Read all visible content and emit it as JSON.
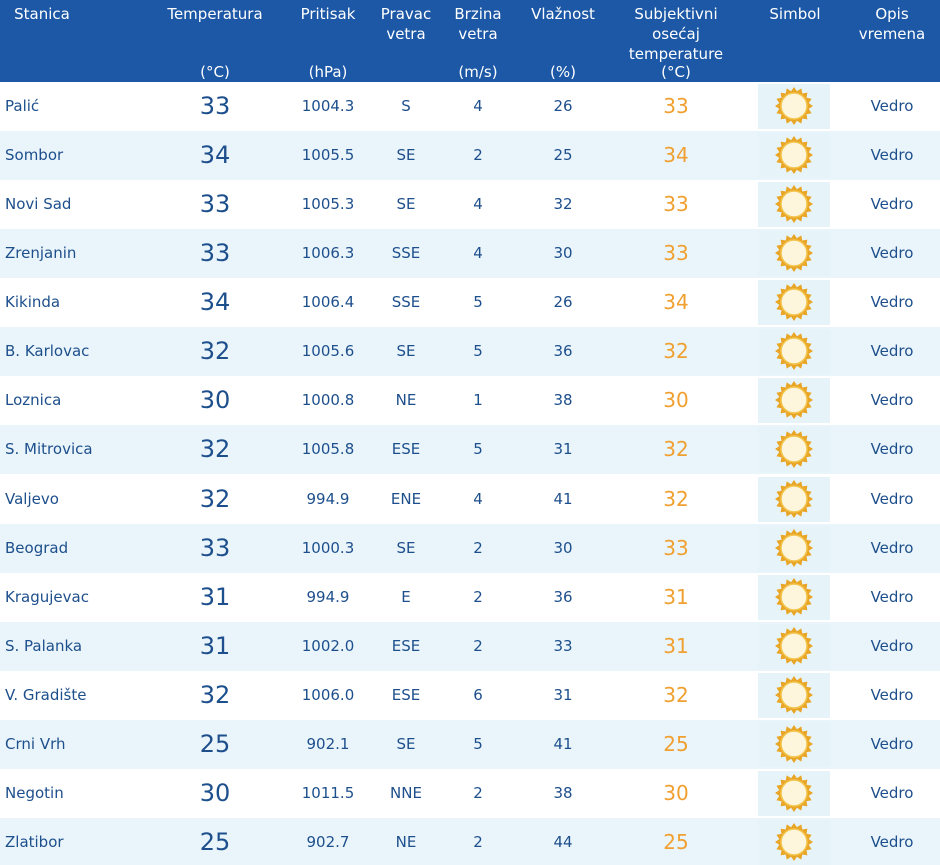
{
  "header": {
    "columns": [
      {
        "name": "Stanica"
      },
      {
        "name": "Temperatura",
        "unit": "(°C)"
      },
      {
        "name": "Pritisak",
        "unit": "(hPa)"
      },
      {
        "name": "Pravac vetra"
      },
      {
        "name": "Brzina vetra",
        "unit": "(m/s)"
      },
      {
        "name": "Vlažnost",
        "unit": "(%)"
      },
      {
        "name": "Subjektivni osećaj temperature",
        "unit": "(°C)"
      },
      {
        "name": "Simbol"
      },
      {
        "name": "Opis vremena"
      }
    ]
  },
  "table": {
    "rows": [
      [
        "Palić",
        "33",
        "1004.3",
        "S",
        "4",
        "26",
        "33",
        "Vedro"
      ],
      [
        "Sombor",
        "34",
        "1005.5",
        "SE",
        "2",
        "25",
        "34",
        "Vedro"
      ],
      [
        "Novi Sad",
        "33",
        "1005.3",
        "SE",
        "4",
        "32",
        "33",
        "Vedro"
      ],
      [
        "Zrenjanin",
        "33",
        "1006.3",
        "SSE",
        "4",
        "30",
        "33",
        "Vedro"
      ],
      [
        "Kikinda",
        "34",
        "1006.4",
        "SSE",
        "5",
        "26",
        "34",
        "Vedro"
      ],
      [
        "B. Karlovac",
        "32",
        "1005.6",
        "SE",
        "5",
        "36",
        "32",
        "Vedro"
      ],
      [
        "Loznica",
        "30",
        "1000.8",
        "NE",
        "1",
        "38",
        "30",
        "Vedro"
      ],
      [
        "S. Mitrovica",
        "32",
        "1005.8",
        "ESE",
        "5",
        "31",
        "32",
        "Vedro"
      ],
      [
        "Valjevo",
        "32",
        "994.9",
        "ENE",
        "4",
        "41",
        "32",
        "Vedro"
      ],
      [
        "Beograd",
        "33",
        "1000.3",
        "SE",
        "2",
        "30",
        "33",
        "Vedro"
      ],
      [
        "Kragujevac",
        "31",
        "994.9",
        "E",
        "2",
        "36",
        "31",
        "Vedro"
      ],
      [
        "S. Palanka",
        "31",
        "1002.0",
        "ESE",
        "2",
        "33",
        "31",
        "Vedro"
      ],
      [
        "V. Gradište",
        "32",
        "1006.0",
        "ESE",
        "6",
        "31",
        "32",
        "Vedro"
      ],
      [
        "Crni Vrh",
        "25",
        "902.1",
        "SE",
        "5",
        "41",
        "25",
        "Vedro"
      ],
      [
        "Negotin",
        "30",
        "1011.5",
        "NNE",
        "2",
        "38",
        "30",
        "Vedro"
      ],
      [
        "Zlatibor",
        "25",
        "902.7",
        "NE",
        "2",
        "44",
        "25",
        "Vedro"
      ]
    ]
  }
}
